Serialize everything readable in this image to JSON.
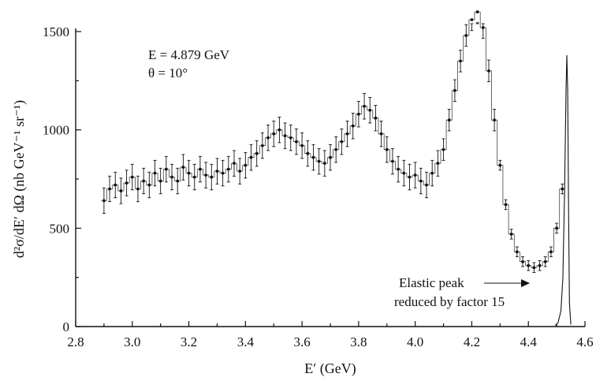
{
  "chart_data": {
    "type": "scatter",
    "title": "",
    "xlabel": "E′ (GeV)",
    "ylabel": "d²σ/dE′ dΩ (nb GeV⁻¹ sr⁻¹)",
    "xlim": [
      2.8,
      4.6
    ],
    "ylim": [
      0,
      1500
    ],
    "x_ticks": [
      "2.8",
      "3.0",
      "3.2",
      "3.4",
      "3.6",
      "3.8",
      "4.0",
      "4.2",
      "4.4",
      "4.6"
    ],
    "y_ticks": [
      "0",
      "500",
      "1000",
      "1500"
    ],
    "annotations": {
      "beam_energy": "E = 4.879 GeV",
      "angle": "θ = 10°",
      "elastic_line1": "Elastic peak",
      "elastic_line2": "reduced by factor 15"
    },
    "series": [
      {
        "x": [
          2.9,
          2.92,
          2.94,
          2.96,
          2.98,
          3.0,
          3.02,
          3.04,
          3.06,
          3.08,
          3.1,
          3.12,
          3.14,
          3.16,
          3.18,
          3.2,
          3.22,
          3.24,
          3.26,
          3.28,
          3.3,
          3.32,
          3.34,
          3.36,
          3.38,
          3.4,
          3.42,
          3.44,
          3.46,
          3.48,
          3.5,
          3.52,
          3.54,
          3.56,
          3.58,
          3.6,
          3.62,
          3.64,
          3.66,
          3.68,
          3.7,
          3.72,
          3.74,
          3.76,
          3.78,
          3.8,
          3.82,
          3.84,
          3.86,
          3.88,
          3.9,
          3.92,
          3.94,
          3.96,
          3.98,
          4.0,
          4.02,
          4.04,
          4.06,
          4.08,
          4.1,
          4.12,
          4.14,
          4.16,
          4.18,
          4.2,
          4.22,
          4.24,
          4.26,
          4.28,
          4.3,
          4.32,
          4.34,
          4.36,
          4.38,
          4.4,
          4.42,
          4.44,
          4.46,
          4.48,
          4.5,
          4.52
        ],
        "y": [
          640,
          700,
          720,
          690,
          730,
          760,
          700,
          740,
          720,
          780,
          740,
          800,
          760,
          740,
          810,
          780,
          760,
          800,
          770,
          760,
          790,
          780,
          800,
          830,
          790,
          820,
          860,
          880,
          920,
          960,
          980,
          1000,
          970,
          960,
          940,
          920,
          880,
          860,
          840,
          830,
          860,
          900,
          940,
          980,
          1020,
          1080,
          1120,
          1100,
          1060,
          980,
          900,
          840,
          800,
          780,
          760,
          770,
          740,
          720,
          780,
          830,
          900,
          1050,
          1200,
          1350,
          1480,
          1560,
          1600,
          1520,
          1300,
          1050,
          820,
          620,
          470,
          380,
          330,
          310,
          300,
          310,
          330,
          380,
          500,
          700
        ]
      }
    ]
  }
}
